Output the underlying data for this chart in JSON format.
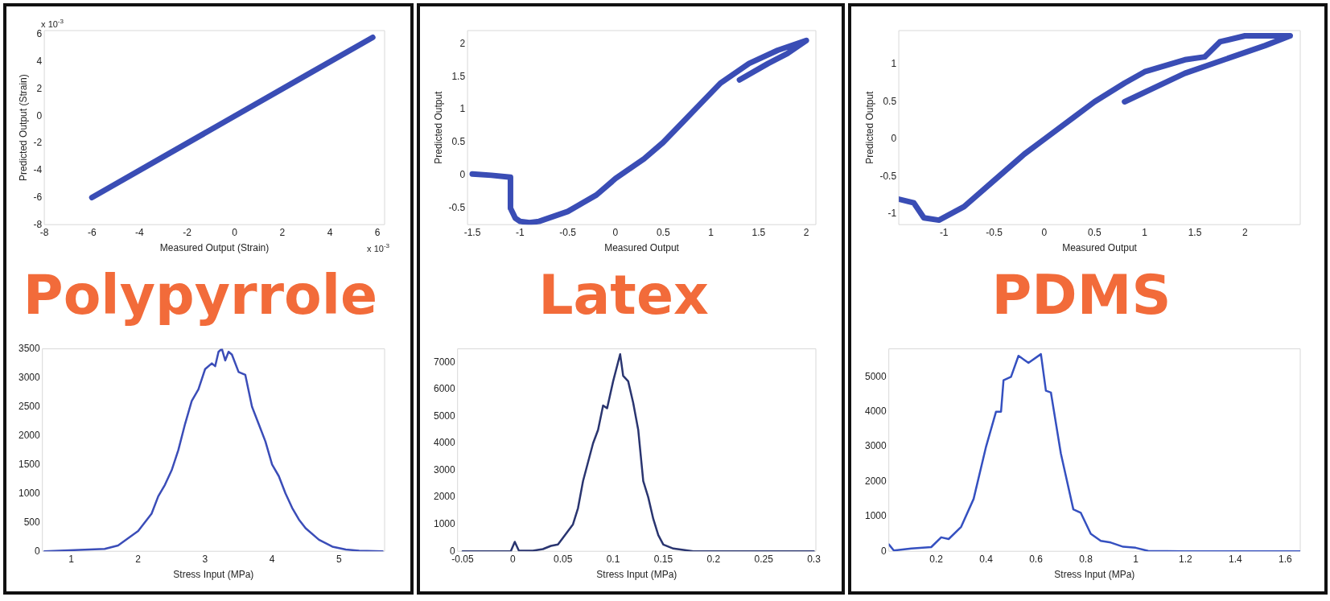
{
  "chart_data": [
    {
      "type": "line",
      "xlabel": "Measured Output (Strain)",
      "ylabel": "Predicted Output (Strain)",
      "annotations": [
        "x 10$^{-3}$",
        "x 10$^{-3}$"
      ],
      "x": [
        -6,
        -3,
        0,
        3,
        5.8
      ],
      "values": [
        -6,
        -3,
        0,
        3,
        5.8
      ],
      "color": "#3a4db5",
      "xlim": [
        -8,
        6.3
      ],
      "xticks": [
        -8,
        -6,
        -4,
        -2,
        0,
        2,
        4,
        6
      ],
      "ylim": [
        -8,
        6.3
      ],
      "yticks": [
        -8,
        -6,
        -4,
        -2,
        0,
        2,
        4,
        6
      ],
      "grid": false,
      "legend": false,
      "marker": "none"
    },
    {
      "type": "line",
      "xlabel": "Measured Output",
      "ylabel": "Predicted Output",
      "x": [
        -1.5,
        -1.3,
        -1.1,
        -1.1,
        -1.05,
        -1.0,
        -0.9,
        -0.8,
        -0.5,
        -0.2,
        0,
        0.3,
        0.5,
        0.7,
        0.9,
        1.1,
        1.4,
        1.7,
        2.0,
        1.8,
        1.6,
        1.3
      ],
      "values": [
        0.02,
        0.0,
        -0.03,
        -0.5,
        -0.65,
        -0.7,
        -0.72,
        -0.7,
        -0.55,
        -0.3,
        -0.05,
        0.25,
        0.5,
        0.8,
        1.1,
        1.4,
        1.7,
        1.9,
        2.05,
        1.85,
        1.7,
        1.45
      ],
      "color": "#3a4db5",
      "xlim": [
        -1.55,
        2.1
      ],
      "xticks": [
        -1.5,
        -1,
        -0.5,
        0,
        0.5,
        1,
        1.5,
        2
      ],
      "ylim": [
        -0.75,
        2.2
      ],
      "yticks": [
        -0.5,
        0,
        0.5,
        1,
        1.5,
        2
      ],
      "grid": false,
      "legend": false,
      "marker": "none"
    },
    {
      "type": "line",
      "xlabel": "Measured Output",
      "ylabel": "Predicted Output",
      "x": [
        -1.45,
        -1.3,
        -1.2,
        -1.05,
        -0.8,
        -0.5,
        -0.2,
        0,
        0.3,
        0.5,
        0.8,
        1.0,
        1.4,
        1.6,
        1.75,
        2.0,
        2.45,
        2.2,
        1.4,
        0.8
      ],
      "values": [
        -0.8,
        -0.85,
        -1.05,
        -1.08,
        -0.9,
        -0.55,
        -0.2,
        0,
        0.3,
        0.5,
        0.75,
        0.9,
        1.06,
        1.1,
        1.3,
        1.38,
        1.38,
        1.25,
        0.88,
        0.5
      ],
      "color": "#3a4db5",
      "xlim": [
        -1.45,
        2.55
      ],
      "xticks": [
        -1,
        -0.5,
        0,
        0.5,
        1,
        1.5,
        2
      ],
      "ylim": [
        -1.14,
        1.45
      ],
      "yticks": [
        -1,
        -0.5,
        0,
        0.5,
        1
      ],
      "grid": false,
      "legend": false,
      "marker": "none"
    },
    {
      "type": "line",
      "title": "Polypyrrole",
      "xlabel": "Stress Input (MPa)",
      "x": [
        0.6,
        1.5,
        1.7,
        2.0,
        2.2,
        2.3,
        2.4,
        2.5,
        2.6,
        2.7,
        2.8,
        2.9,
        3.0,
        3.1,
        3.15,
        3.2,
        3.25,
        3.3,
        3.35,
        3.4,
        3.5,
        3.6,
        3.7,
        3.8,
        3.9,
        4.0,
        4.1,
        4.2,
        4.3,
        4.4,
        4.5,
        4.7,
        4.9,
        5.1,
        5.3,
        5.65
      ],
      "values": [
        0,
        40,
        100,
        350,
        650,
        950,
        1150,
        1400,
        1750,
        2200,
        2600,
        2800,
        3150,
        3250,
        3200,
        3450,
        3500,
        3300,
        3450,
        3400,
        3100,
        3050,
        2500,
        2200,
        1900,
        1500,
        1300,
        1000,
        750,
        550,
        400,
        200,
        80,
        30,
        10,
        0
      ],
      "color": "#3b4db8",
      "xlim": [
        0.57,
        5.68
      ],
      "xticks": [
        1,
        2,
        3,
        4,
        5
      ],
      "ylim": [
        0,
        3500
      ],
      "yticks": [
        0,
        500,
        1000,
        1500,
        2000,
        2500,
        3000,
        3500
      ],
      "grid": false,
      "legend": false,
      "marker": "none"
    },
    {
      "type": "line",
      "title": "Latex",
      "xlabel": "Stress Input (MPa)",
      "x": [
        -0.05,
        -0.002,
        0.002,
        0.006,
        0.02,
        0.03,
        0.038,
        0.045,
        0.05,
        0.06,
        0.065,
        0.07,
        0.08,
        0.085,
        0.09,
        0.094,
        0.1,
        0.107,
        0.11,
        0.115,
        0.12,
        0.125,
        0.13,
        0.135,
        0.14,
        0.145,
        0.15,
        0.16,
        0.17,
        0.18,
        0.2,
        0.3
      ],
      "values": [
        0,
        0,
        350,
        30,
        20,
        80,
        200,
        250,
        500,
        1000,
        1600,
        2600,
        4000,
        4500,
        5400,
        5300,
        6300,
        7300,
        6500,
        6300,
        5500,
        4500,
        2600,
        2000,
        1200,
        600,
        250,
        100,
        50,
        0,
        0,
        0
      ],
      "color": "#2a3570",
      "xlim": [
        -0.055,
        0.302
      ],
      "xticks": [
        -0.05,
        0,
        0.05,
        0.1,
        0.15,
        0.2,
        0.25,
        0.3
      ],
      "ylim": [
        0,
        7500
      ],
      "yticks": [
        0,
        1000,
        2000,
        3000,
        4000,
        5000,
        6000,
        7000
      ],
      "grid": false,
      "legend": false,
      "marker": "none"
    },
    {
      "type": "line",
      "title": "PDMS",
      "xlabel": "Stress Input (MPa)",
      "x": [
        0.01,
        0.03,
        0.1,
        0.18,
        0.22,
        0.25,
        0.3,
        0.35,
        0.4,
        0.44,
        0.46,
        0.47,
        0.5,
        0.53,
        0.57,
        0.62,
        0.64,
        0.66,
        0.7,
        0.75,
        0.78,
        0.82,
        0.86,
        0.9,
        0.95,
        1.0,
        1.05,
        1.2,
        1.66
      ],
      "values": [
        200,
        20,
        80,
        120,
        400,
        350,
        700,
        1500,
        3000,
        4000,
        4000,
        4900,
        5000,
        5600,
        5400,
        5650,
        4600,
        4550,
        2800,
        1200,
        1100,
        500,
        300,
        250,
        130,
        100,
        10,
        0,
        0
      ],
      "color": "#3550c0",
      "xlim": [
        0.01,
        1.66
      ],
      "xticks": [
        0.2,
        0.4,
        0.6,
        0.8,
        1,
        1.2,
        1.4,
        1.6
      ],
      "ylim": [
        0,
        5800
      ],
      "yticks": [
        0,
        1000,
        2000,
        3000,
        4000,
        5000
      ],
      "grid": false,
      "legend": false,
      "marker": "none"
    }
  ]
}
